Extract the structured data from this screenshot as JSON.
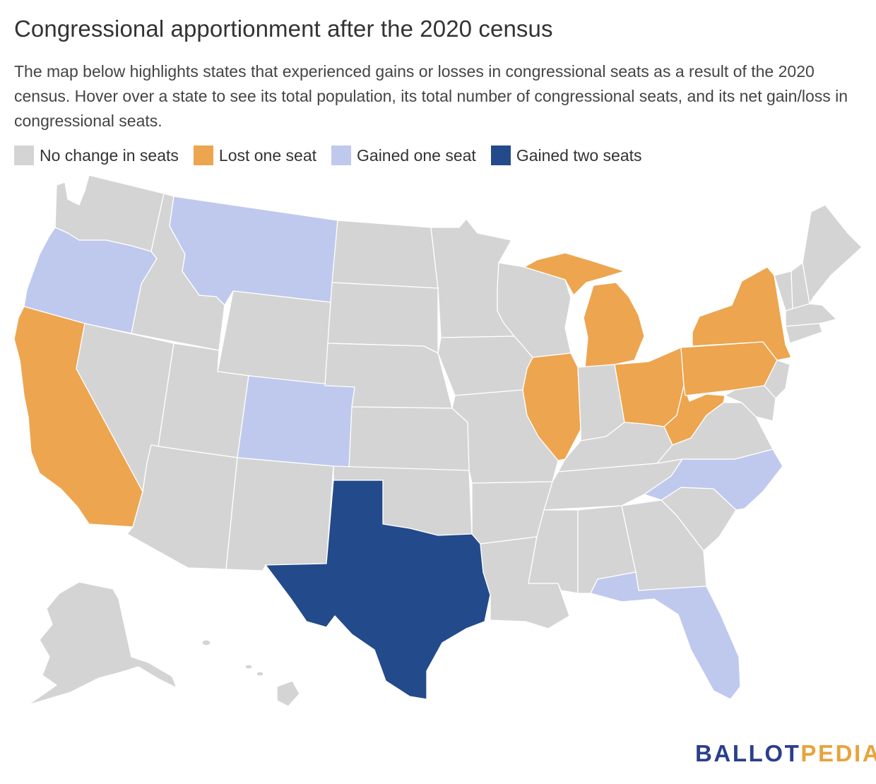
{
  "title": "Congressional apportionment after the 2020 census",
  "subtitle": "The map below highlights states that experienced gains or losses in congressional seats as a result of the 2020 census. Hover over a state to see its total population, its total number of congressional seats, and its net gain/loss in congressional seats.",
  "colors": {
    "no_change": "#d4d4d4",
    "lost_one": "#eda54f",
    "gained_one": "#bfc9ee",
    "gained_two": "#234a8a",
    "border": "#ffffff"
  },
  "legend": [
    {
      "label": "No change in seats",
      "category": "no_change"
    },
    {
      "label": "Lost one seat",
      "category": "lost_one"
    },
    {
      "label": "Gained one seat",
      "category": "gained_one"
    },
    {
      "label": "Gained two seats",
      "category": "gained_two"
    }
  ],
  "states": {
    "lost_one": [
      "California",
      "Illinois",
      "Michigan",
      "New York",
      "Ohio",
      "Pennsylvania",
      "West Virginia"
    ],
    "gained_one": [
      "Oregon",
      "Montana",
      "Colorado",
      "North Carolina",
      "Florida"
    ],
    "gained_two": [
      "Texas"
    ]
  },
  "logo": {
    "part1": "BALLOT",
    "part2": "PEDIA"
  }
}
